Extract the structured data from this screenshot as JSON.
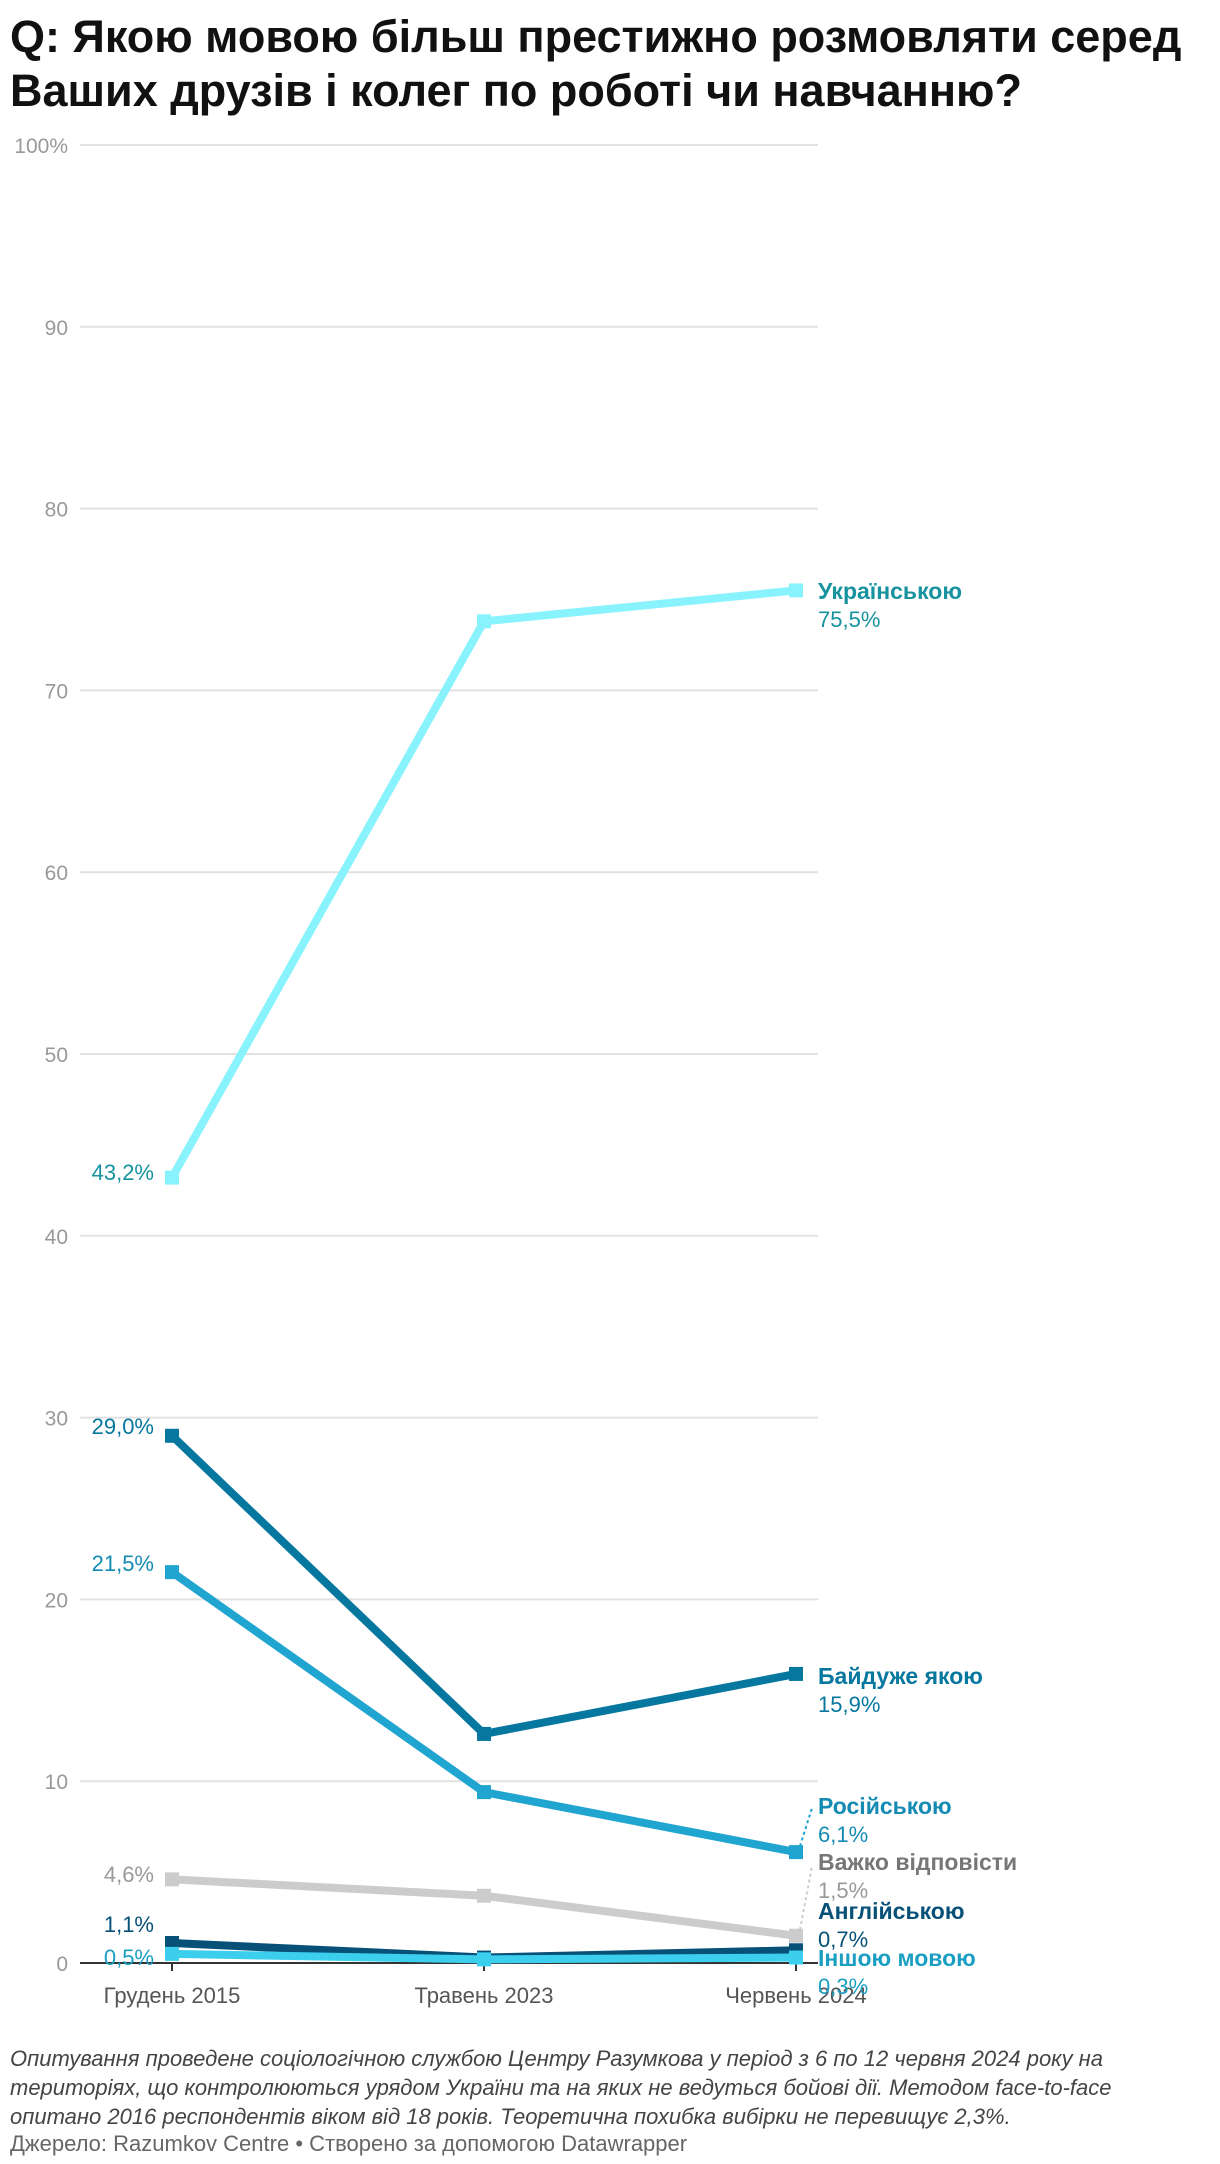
{
  "title": "Q: Якою мовою більш престижно розмовляти серед Ваших друзів і колег по роботі чи навчанню?",
  "notes": "Опитування проведене соціологічною службою Центру Разумкова у період з 6 по 12 червня 2024 року на територіях, що контролюються урядом України та на яких не ведуться бойові дії. Методом face-to-face опитано 2016 респондентів віком від 18 років. Теоретична похибка вибірки не перевищує 2,3%.",
  "source": "Джерело: Razumkov Centre • Створено за допомогою Datawrapper",
  "chart_data": {
    "type": "line",
    "x": [
      "Грудень 2015",
      "Травень 2023",
      "Червень 2024"
    ],
    "ylim": [
      0,
      100
    ],
    "yticks": [
      "0",
      "10",
      "20",
      "30",
      "40",
      "50",
      "60",
      "70",
      "80",
      "90",
      "100%"
    ],
    "grid": true,
    "series": [
      {
        "name": "Українською",
        "values": [
          43.2,
          73.8,
          75.5
        ],
        "color": "#88f2fd",
        "start_label": "43,2%",
        "end_label": "75,5%",
        "label_color": "#17939f",
        "value_color": "#17939f"
      },
      {
        "name": "Байдуже якою",
        "values": [
          29.0,
          12.6,
          15.9
        ],
        "color": "#06779e",
        "start_label": "29,0%",
        "end_label": "15,9%",
        "label_color": "#06779e",
        "value_color": "#06779e"
      },
      {
        "name": "Російською",
        "values": [
          21.5,
          9.4,
          6.1
        ],
        "color": "#20a4d0",
        "start_label": "21,5%",
        "end_label": "6,1%",
        "label_color": "#148bb3",
        "value_color": "#148bb3"
      },
      {
        "name": "Важко відповісти",
        "values": [
          4.6,
          3.7,
          1.5
        ],
        "color": "#cccccc",
        "start_label": "4,6%",
        "end_label": "1,5%",
        "label_color": "#777777",
        "value_color": "#999999"
      },
      {
        "name": "Англійською",
        "values": [
          1.1,
          0.3,
          0.7
        ],
        "color": "#075178",
        "start_label": "1,1%",
        "end_label": "0,7%",
        "label_color": "#075178",
        "value_color": "#075178"
      },
      {
        "name": "Іншою мовою",
        "values": [
          0.5,
          0.2,
          0.3
        ],
        "color": "#3ccfed",
        "start_label": "0,5%",
        "end_label": "0,3%",
        "label_color": "#1a9fc2",
        "value_color": "#1a9fc2"
      }
    ]
  }
}
